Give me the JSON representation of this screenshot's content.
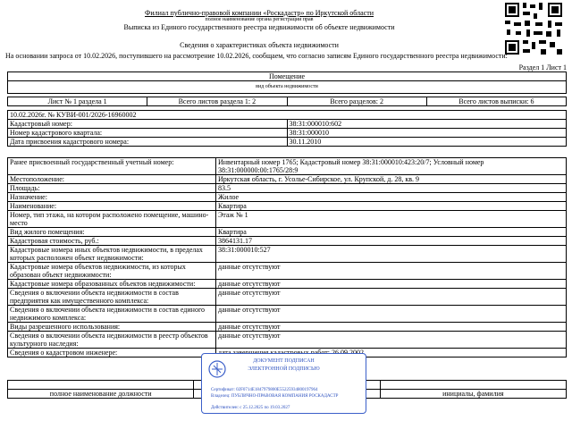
{
  "header": {
    "organization": "Филиал публично-правовой компании «Роскадастр» по Иркутской области",
    "organization_caption": "полное наименование органа регистрации прав",
    "title": "Выписка из Единого государственного реестра недвижимости об объекте недвижимости",
    "subtitle": "Сведения о характеристиках объекта недвижимости",
    "intro": "На  основании запроса от 10.02.2026, поступившего на рассмотрение 10.02.2026, сообщаем, что согласно записям Единого государственного реестра недвижимости:",
    "section": "Раздел 1 Лист 1"
  },
  "object": {
    "kind": "Помещение",
    "kind_caption": "вид объекта недвижимости"
  },
  "sheets": [
    "Лист № 1 раздела 1",
    "Всего листов раздела 1: 2",
    "Всего разделов: 2",
    "Всего листов выписки: 6"
  ],
  "record": "10.02.2026г. № КУВИ-001/2026-16960002",
  "ids": [
    [
      "Кадастровый номер:",
      "38:31:000010:602"
    ],
    [
      "Номер кадастрового квартала:",
      "38:31:000010"
    ],
    [
      "Дата присвоения кадастрового номера:",
      "30.11.2010"
    ]
  ],
  "rows": [
    [
      "Ранее присвоенный государственный учетный номер:",
      "Инвентарный номер 1765; Кадастровый номер 38:31:000010:423:20/7; Условный номер 38:31:000000:00:1765/28:9"
    ],
    [
      "Местоположение:",
      "Иркутская область, г. Усолье-Сибирское, ул. Крупской, д. 28, кв. 9"
    ],
    [
      "Площадь:",
      "83.5"
    ],
    [
      "Назначение:",
      "Жилое"
    ],
    [
      "Наименование:",
      "Квартира"
    ],
    [
      "Номер, тип этажа, на котором расположено помещение, машино-место",
      "Этаж № 1"
    ],
    [
      "Вид жилого помещения:",
      "Квартира"
    ],
    [
      "Кадастровая стоимость, руб.:",
      "3864131.17"
    ],
    [
      "Кадастровые номера иных объектов недвижимости, в пределах которых расположен объект недвижимости:",
      "38:31:000010:527"
    ],
    [
      "Кадастровые номера объектов недвижимости, из которых образован объект недвижимости:",
      "данные отсутствуют"
    ],
    [
      "Кадастровые номера образованных объектов недвижимости:",
      "данные отсутствуют"
    ],
    [
      "Сведения о включении объекта недвижимости в состав предприятия как имущественного комплекса:",
      "данные отсутствуют"
    ],
    [
      "Сведения о включении объекта недвижимости в состав единого недвижимого комплекса:",
      "данные отсутствуют"
    ],
    [
      "Виды разрешенного использования:",
      "данные отсутствуют"
    ],
    [
      "Сведения о включении объекта недвижимости в реестр объектов культурного наследия:",
      "данные отсутствуют"
    ],
    [
      "Сведения о кадастровом инженере:",
      "дата завершения кадастровых работ: 26.09.2002"
    ]
  ],
  "footer": {
    "position_caption": "полное наименование должности",
    "name_caption": "инициалы, фамилия"
  },
  "stamp": {
    "title": "ДОКУМЕНТ ПОДПИСАН",
    "subtitle": "ЭЛЕКТРОННОЙ ПОДПИСЬЮ",
    "certificate": "Сертификат: 02F0714E1847979800E55225934800197964",
    "owner": "Владелец: ПУБЛИЧНО-ПРАВОВАЯ КОМПАНИЯ РОСКАДАСТР",
    "validity": "Действителен: с 25.12.2025 по 19.03.2027"
  }
}
